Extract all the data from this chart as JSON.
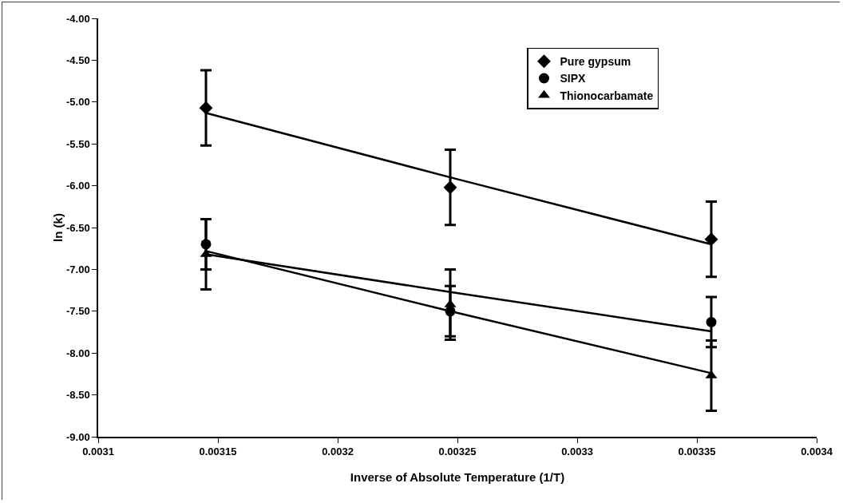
{
  "chart_data": {
    "type": "scatter",
    "xlabel": "Inverse of Absolute Temperature (1/T)",
    "ylabel": "ln (k)",
    "x": [
      0.003145,
      0.003247,
      0.003356
    ],
    "series": [
      {
        "name": "Pure gypsum",
        "color": "#000000",
        "marker": "diamond",
        "values": [
          -5.07,
          -6.02,
          -6.64
        ],
        "errors": [
          0.45,
          0.45,
          0.45
        ]
      },
      {
        "name": "SIPX",
        "color": "#000000",
        "marker": "circle",
        "values": [
          -6.7,
          -7.5,
          -7.63
        ],
        "errors": [
          0.3,
          0.3,
          0.3
        ]
      },
      {
        "name": "Thionocarbamate",
        "color": "#000000",
        "marker": "triangle",
        "values": [
          -6.82,
          -7.42,
          -8.27
        ],
        "errors": [
          0.42,
          0.42,
          0.42
        ]
      },
      {
        "type": "line",
        "color": "#000000",
        "values": [
          -5.13,
          -5.9,
          -6.7
        ]
      },
      {
        "type": "line",
        "color": "#000000",
        "values": [
          -6.82,
          -7.27,
          -7.74
        ]
      },
      {
        "type": "line",
        "color": "#000000",
        "values": [
          -6.78,
          -7.5,
          -8.24
        ]
      }
    ],
    "xlim": [
      0.0031,
      0.0034
    ],
    "xticks": [
      0.0031,
      0.00315,
      0.0032,
      0.00325,
      0.0033,
      0.00335,
      0.0034
    ],
    "ylim": [
      -9,
      -4
    ],
    "yticks": [
      {
        "value": -9,
        "label": "-9.00"
      },
      {
        "value": -8.5,
        "label": "-8.50"
      },
      {
        "value": -8,
        "label": "-8.00"
      },
      {
        "value": -7.5,
        "label": "-7.50"
      },
      {
        "value": -7,
        "label": "-7.00"
      },
      {
        "value": -6.5,
        "label": "-6.50"
      },
      {
        "value": -6,
        "label": "-6.00"
      },
      {
        "value": -5.5,
        "label": "-5.50"
      },
      {
        "value": -5,
        "label": "-5.00"
      },
      {
        "value": -4.5,
        "label": "-4.50"
      },
      {
        "value": -4,
        "label": "-4.00"
      }
    ],
    "grid": false,
    "legend": "top right",
    "line_style": "solid"
  }
}
